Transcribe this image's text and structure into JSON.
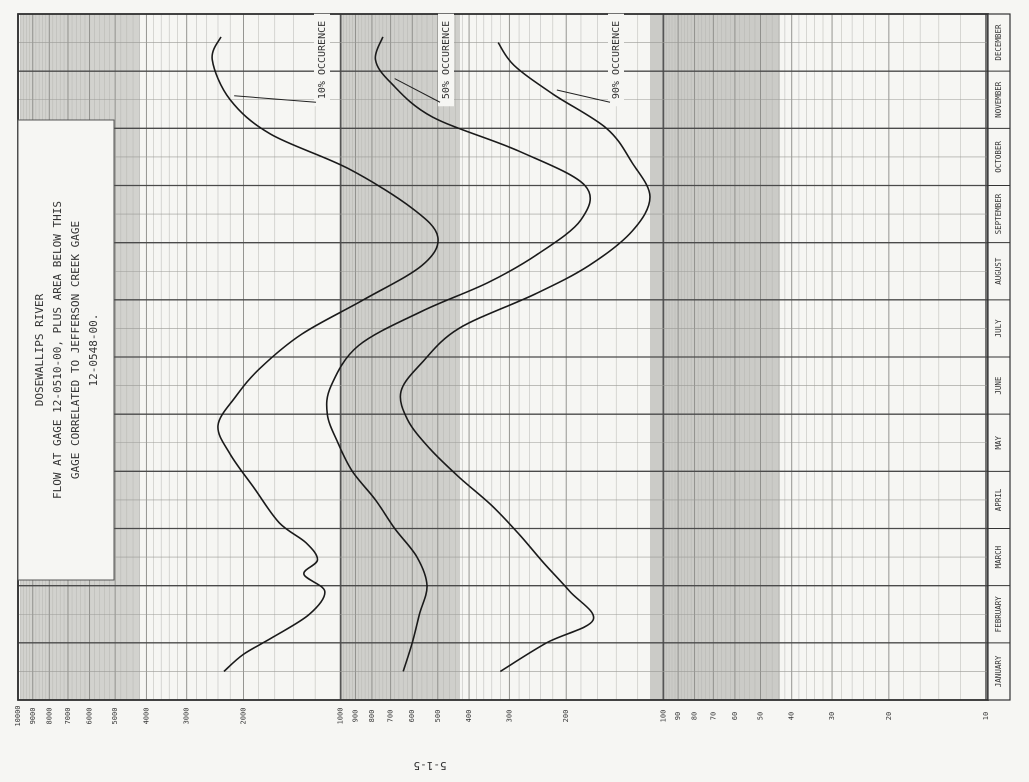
{
  "page": {
    "bottom_mark": "5-1-5"
  },
  "chart_data": {
    "type": "line",
    "orientation": "rotated-90-clockwise",
    "title_lines": [
      "DOSEWALLIPS RIVER",
      "FLOW AT GAGE 12-0510-00, PLUS AREA BELOW THIS",
      "GAGE CORRELATED TO JEFFERSON CREEK GAGE",
      "12-0548-00."
    ],
    "categories": [
      "JANUARY",
      "FEBRUARY",
      "MARCH",
      "APRIL",
      "MAY",
      "JUNE",
      "JULY",
      "AUGUST",
      "SEPTEMBER",
      "OCTOBER",
      "NOVEMBER",
      "DECEMBER"
    ],
    "flow_scale": "log",
    "flow_range": [
      10,
      10000
    ],
    "flow_tick_labels": [
      {
        "value": 10,
        "label": "10"
      },
      {
        "value": 20,
        "label": "20"
      },
      {
        "value": 30,
        "label": "30"
      },
      {
        "value": 40,
        "label": "40"
      },
      {
        "value": 50,
        "label": "50"
      },
      {
        "value": 60,
        "label": "60"
      },
      {
        "value": 70,
        "label": "70"
      },
      {
        "value": 80,
        "label": "80"
      },
      {
        "value": 90,
        "label": "90"
      },
      {
        "value": 100,
        "label": "100"
      },
      {
        "value": 200,
        "label": "200"
      },
      {
        "value": 300,
        "label": "300"
      },
      {
        "value": 400,
        "label": "400"
      },
      {
        "value": 500,
        "label": "500"
      },
      {
        "value": 600,
        "label": "600"
      },
      {
        "value": 700,
        "label": "700"
      },
      {
        "value": 800,
        "label": "800"
      },
      {
        "value": 900,
        "label": "900"
      },
      {
        "value": 1000,
        "label": "1000"
      },
      {
        "value": 2000,
        "label": "2000"
      },
      {
        "value": 3000,
        "label": "3000"
      },
      {
        "value": 4000,
        "label": "4000"
      },
      {
        "value": 5000,
        "label": "5000"
      },
      {
        "value": 6000,
        "label": "6000"
      },
      {
        "value": 7000,
        "label": "7000"
      },
      {
        "value": 8000,
        "label": "8000"
      },
      {
        "value": 9000,
        "label": "9000"
      },
      {
        "value": 10000,
        "label": "10000"
      }
    ],
    "grid": true,
    "series": [
      {
        "name": "10% OCCURENCE",
        "color": "#1a1a1a",
        "points": [
          {
            "month": 0.5,
            "flow": 2300
          },
          {
            "month": 0.8,
            "flow": 2000
          },
          {
            "month": 1.1,
            "flow": 1620
          },
          {
            "month": 1.5,
            "flow": 1250
          },
          {
            "month": 1.9,
            "flow": 1120
          },
          {
            "month": 2.2,
            "flow": 1300
          },
          {
            "month": 2.45,
            "flow": 1180
          },
          {
            "month": 2.75,
            "flow": 1280
          },
          {
            "month": 3.1,
            "flow": 1550
          },
          {
            "month": 3.7,
            "flow": 1850
          },
          {
            "month": 4.3,
            "flow": 2200
          },
          {
            "month": 4.8,
            "flow": 2400
          },
          {
            "month": 5.3,
            "flow": 2120
          },
          {
            "month": 5.8,
            "flow": 1780
          },
          {
            "month": 6.4,
            "flow": 1320
          },
          {
            "month": 7.0,
            "flow": 850
          },
          {
            "month": 7.6,
            "flow": 560
          },
          {
            "month": 8.1,
            "flow": 500
          },
          {
            "month": 8.6,
            "flow": 600
          },
          {
            "month": 9.3,
            "flow": 950
          },
          {
            "month": 9.9,
            "flow": 1650
          },
          {
            "month": 10.5,
            "flow": 2200
          },
          {
            "month": 11.2,
            "flow": 2500
          },
          {
            "month": 11.6,
            "flow": 2350
          }
        ]
      },
      {
        "name": "50% OCCURENCE",
        "color": "#1a1a1a",
        "points": [
          {
            "month": 0.5,
            "flow": 640
          },
          {
            "month": 1.0,
            "flow": 600
          },
          {
            "month": 1.5,
            "flow": 570
          },
          {
            "month": 2.0,
            "flow": 540
          },
          {
            "month": 2.5,
            "flow": 580
          },
          {
            "month": 3.0,
            "flow": 680
          },
          {
            "month": 3.5,
            "flow": 780
          },
          {
            "month": 4.0,
            "flow": 920
          },
          {
            "month": 4.5,
            "flow": 1020
          },
          {
            "month": 5.0,
            "flow": 1100
          },
          {
            "month": 5.5,
            "flow": 1070
          },
          {
            "month": 6.2,
            "flow": 880
          },
          {
            "month": 6.8,
            "flow": 560
          },
          {
            "month": 7.3,
            "flow": 350
          },
          {
            "month": 7.8,
            "flow": 245
          },
          {
            "month": 8.4,
            "flow": 180
          },
          {
            "month": 9.0,
            "flow": 175
          },
          {
            "month": 9.6,
            "flow": 280
          },
          {
            "month": 10.2,
            "flow": 520
          },
          {
            "month": 10.8,
            "flow": 700
          },
          {
            "month": 11.2,
            "flow": 780
          },
          {
            "month": 11.6,
            "flow": 740
          }
        ]
      },
      {
        "name": "90% OCCURENCE",
        "color": "#1a1a1a",
        "points": [
          {
            "month": 0.5,
            "flow": 320
          },
          {
            "month": 1.0,
            "flow": 230
          },
          {
            "month": 1.4,
            "flow": 165
          },
          {
            "month": 1.9,
            "flow": 195
          },
          {
            "month": 2.4,
            "flow": 235
          },
          {
            "month": 2.9,
            "flow": 280
          },
          {
            "month": 3.4,
            "flow": 340
          },
          {
            "month": 3.9,
            "flow": 430
          },
          {
            "month": 4.4,
            "flow": 530
          },
          {
            "month": 4.9,
            "flow": 620
          },
          {
            "month": 5.4,
            "flow": 650
          },
          {
            "month": 5.9,
            "flow": 560
          },
          {
            "month": 6.5,
            "flow": 430
          },
          {
            "month": 7.1,
            "flow": 250
          },
          {
            "month": 7.6,
            "flow": 170
          },
          {
            "month": 8.2,
            "flow": 125
          },
          {
            "month": 8.8,
            "flow": 110
          },
          {
            "month": 9.4,
            "flow": 125
          },
          {
            "month": 10.0,
            "flow": 150
          },
          {
            "month": 10.6,
            "flow": 220
          },
          {
            "month": 11.1,
            "flow": 290
          },
          {
            "month": 11.5,
            "flow": 325
          }
        ]
      }
    ]
  }
}
